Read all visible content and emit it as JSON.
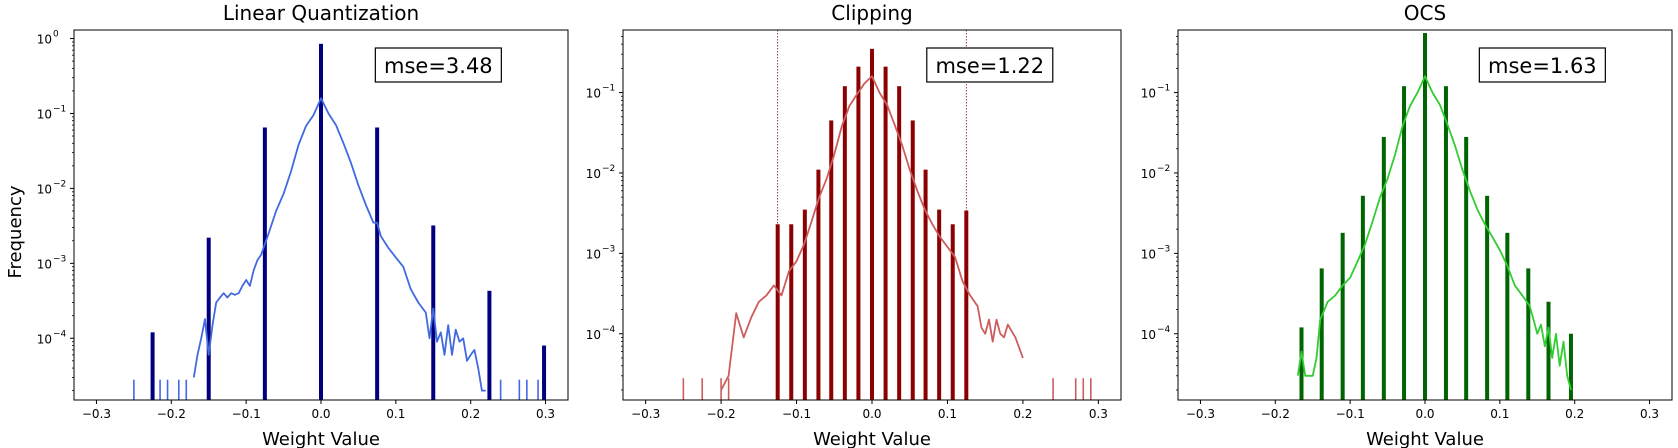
{
  "figure": {
    "ylabel": "Frequency"
  },
  "chart_data": [
    {
      "type": "bar",
      "title": "Linear Quantization",
      "xlabel": "Weight Value",
      "ylabel": "Frequency",
      "yscale": "log",
      "xlim": [
        -0.33,
        0.33
      ],
      "ylim": [
        1.5e-05,
        1.3
      ],
      "xticks": [
        -0.3,
        -0.2,
        -0.1,
        0.0,
        0.1,
        0.2,
        0.3
      ],
      "xtick_labels": [
        "−0.3",
        "−0.2",
        "−0.1",
        "0.0",
        "0.1",
        "0.2",
        "0.3"
      ],
      "yticks": [
        0,
        -1,
        -2,
        -3,
        -4
      ],
      "annotation": "mse=3.48",
      "bar_color": "#00007f",
      "line_color": "#4169e1",
      "bars": {
        "x": [
          -0.225,
          -0.15,
          -0.075,
          0.0,
          0.075,
          0.15,
          0.225,
          0.298
        ],
        "y": [
          0.00012,
          0.0022,
          0.065,
          0.85,
          0.065,
          0.0032,
          0.00043,
          8e-05
        ]
      },
      "line": {
        "x": [
          -0.17,
          -0.165,
          -0.16,
          -0.155,
          -0.15,
          -0.145,
          -0.14,
          -0.135,
          -0.13,
          -0.125,
          -0.12,
          -0.115,
          -0.11,
          -0.105,
          -0.1,
          -0.095,
          -0.09,
          -0.085,
          -0.08,
          -0.07,
          -0.06,
          -0.05,
          -0.04,
          -0.03,
          -0.02,
          -0.01,
          0.0,
          0.01,
          0.02,
          0.03,
          0.04,
          0.05,
          0.06,
          0.07,
          0.075,
          0.08,
          0.09,
          0.1,
          0.11,
          0.12,
          0.13,
          0.14,
          0.145,
          0.15,
          0.155,
          0.16,
          0.165,
          0.17,
          0.175,
          0.18,
          0.185,
          0.19,
          0.195,
          0.2,
          0.205,
          0.21,
          0.215,
          0.22
        ],
        "y": [
          3e-05,
          6e-05,
          0.0001,
          0.00018,
          6e-05,
          0.00015,
          0.0003,
          0.00035,
          0.0004,
          0.00035,
          0.0004,
          0.00038,
          0.0004,
          0.0005,
          0.0006,
          0.0005,
          0.0008,
          0.0011,
          0.0013,
          0.0025,
          0.005,
          0.0085,
          0.017,
          0.038,
          0.068,
          0.095,
          0.16,
          0.1,
          0.07,
          0.04,
          0.022,
          0.011,
          0.006,
          0.0035,
          0.0035,
          0.0023,
          0.0016,
          0.0012,
          0.0009,
          0.00045,
          0.0003,
          0.00022,
          0.0001,
          0.00025,
          9e-05,
          0.00012,
          6e-05,
          0.00015,
          6e-05,
          0.00013,
          9e-05,
          0.0001,
          5e-05,
          6e-05,
          7e-05,
          4e-05,
          2e-05,
          2e-05
        ]
      },
      "stems": {
        "x": [
          -0.25,
          -0.225,
          -0.215,
          -0.205,
          -0.19,
          -0.18,
          0.24,
          0.265,
          0.275,
          0.29
        ],
        "y": [
          2.8e-05,
          2.8e-05,
          2.8e-05,
          2.8e-05,
          2.8e-05,
          2.8e-05,
          2.8e-05,
          2.8e-05,
          2.8e-05,
          2.8e-05
        ]
      }
    },
    {
      "type": "bar",
      "title": "Clipping",
      "xlabel": "Weight Value",
      "ylabel": "",
      "yscale": "log",
      "xlim": [
        -0.33,
        0.33
      ],
      "ylim": [
        1.5e-05,
        0.6
      ],
      "xticks": [
        -0.3,
        -0.2,
        -0.1,
        0.0,
        0.1,
        0.2,
        0.3
      ],
      "xtick_labels": [
        "−0.3",
        "−0.2",
        "−0.1",
        "0.0",
        "0.1",
        "0.2",
        "0.3"
      ],
      "yticks": [
        -1,
        -2,
        -3,
        -4
      ],
      "annotation": "mse=1.22",
      "bar_color": "#8b0000",
      "line_color": "#cd5c5c",
      "clip_lines": [
        -0.125,
        0.125
      ],
      "bars": {
        "x": [
          -0.125,
          -0.107,
          -0.089,
          -0.071,
          -0.054,
          -0.036,
          -0.018,
          0.0,
          0.018,
          0.036,
          0.054,
          0.071,
          0.089,
          0.107,
          0.125
        ],
        "y": [
          0.0023,
          0.0023,
          0.0035,
          0.011,
          0.045,
          0.12,
          0.21,
          0.35,
          0.21,
          0.12,
          0.045,
          0.011,
          0.0035,
          0.0023,
          0.0034
        ]
      },
      "line": {
        "x": [
          -0.2,
          -0.19,
          -0.18,
          -0.17,
          -0.16,
          -0.15,
          -0.14,
          -0.13,
          -0.12,
          -0.11,
          -0.1,
          -0.09,
          -0.08,
          -0.07,
          -0.06,
          -0.05,
          -0.04,
          -0.03,
          -0.02,
          -0.01,
          0.0,
          0.01,
          0.02,
          0.03,
          0.04,
          0.05,
          0.06,
          0.07,
          0.08,
          0.09,
          0.1,
          0.11,
          0.12,
          0.13,
          0.14,
          0.145,
          0.15,
          0.155,
          0.16,
          0.165,
          0.17,
          0.175,
          0.18,
          0.19,
          0.2
        ],
        "y": [
          2e-05,
          3e-05,
          0.00018,
          9e-05,
          0.00016,
          0.00025,
          0.0003,
          0.0004,
          0.0003,
          0.0006,
          0.0008,
          0.0013,
          0.0025,
          0.005,
          0.0085,
          0.017,
          0.038,
          0.068,
          0.095,
          0.13,
          0.16,
          0.1,
          0.07,
          0.04,
          0.022,
          0.011,
          0.006,
          0.0035,
          0.0023,
          0.0016,
          0.0012,
          0.0009,
          0.00045,
          0.0003,
          0.00022,
          0.00012,
          0.0001,
          0.00015,
          8e-05,
          0.00015,
          0.0001,
          9e-05,
          0.00013,
          9e-05,
          5e-05
        ]
      },
      "stems": {
        "x": [
          -0.25,
          -0.225,
          -0.2,
          -0.19,
          0.24,
          0.27,
          0.28,
          0.29
        ],
        "y": [
          2.8e-05,
          2.8e-05,
          2.8e-05,
          2.8e-05,
          2.8e-05,
          2.8e-05,
          2.8e-05,
          2.8e-05
        ]
      }
    },
    {
      "type": "bar",
      "title": "OCS",
      "xlabel": "Weight Value",
      "ylabel": "",
      "yscale": "log",
      "xlim": [
        -0.33,
        0.33
      ],
      "ylim": [
        1.5e-05,
        0.6
      ],
      "xticks": [
        -0.3,
        -0.2,
        -0.1,
        0.0,
        0.1,
        0.2,
        0.3
      ],
      "xtick_labels": [
        "−0.3",
        "−0.2",
        "−0.1",
        "0.0",
        "0.1",
        "0.2",
        "0.3"
      ],
      "yticks": [
        -1,
        -2,
        -3,
        -4
      ],
      "annotation": "mse=1.63",
      "bar_color": "#006400",
      "line_color": "#32cd32",
      "bars": {
        "x": [
          -0.165,
          -0.138,
          -0.11,
          -0.083,
          -0.055,
          -0.028,
          0.0,
          0.028,
          0.055,
          0.083,
          0.11,
          0.138,
          0.165,
          0.195
        ],
        "y": [
          0.00012,
          0.00065,
          0.0018,
          0.0052,
          0.028,
          0.12,
          0.55,
          0.12,
          0.028,
          0.0052,
          0.0018,
          0.00065,
          0.00025,
          0.0001
        ]
      },
      "line": {
        "x": [
          -0.17,
          -0.165,
          -0.16,
          -0.155,
          -0.15,
          -0.145,
          -0.14,
          -0.13,
          -0.12,
          -0.11,
          -0.1,
          -0.09,
          -0.08,
          -0.07,
          -0.06,
          -0.05,
          -0.04,
          -0.03,
          -0.02,
          -0.01,
          0.0,
          0.01,
          0.02,
          0.03,
          0.04,
          0.05,
          0.06,
          0.07,
          0.08,
          0.09,
          0.1,
          0.11,
          0.12,
          0.13,
          0.14,
          0.145,
          0.15,
          0.155,
          0.16,
          0.165,
          0.17,
          0.175,
          0.18,
          0.185,
          0.19,
          0.195
        ],
        "y": [
          3e-05,
          6e-05,
          3e-05,
          3e-05,
          3e-05,
          5e-05,
          0.00015,
          0.00025,
          0.0003,
          0.0004,
          0.0005,
          0.0008,
          0.0013,
          0.0025,
          0.005,
          0.0085,
          0.017,
          0.038,
          0.068,
          0.1,
          0.16,
          0.1,
          0.07,
          0.04,
          0.022,
          0.011,
          0.006,
          0.0035,
          0.0023,
          0.0016,
          0.0011,
          0.0007,
          0.0004,
          0.0003,
          0.00022,
          0.00015,
          0.0001,
          0.00013,
          7e-05,
          0.00012,
          5e-05,
          0.0001,
          4e-05,
          8e-05,
          3e-05,
          2e-05
        ]
      },
      "stems": {
        "x": [],
        "y": []
      }
    }
  ]
}
